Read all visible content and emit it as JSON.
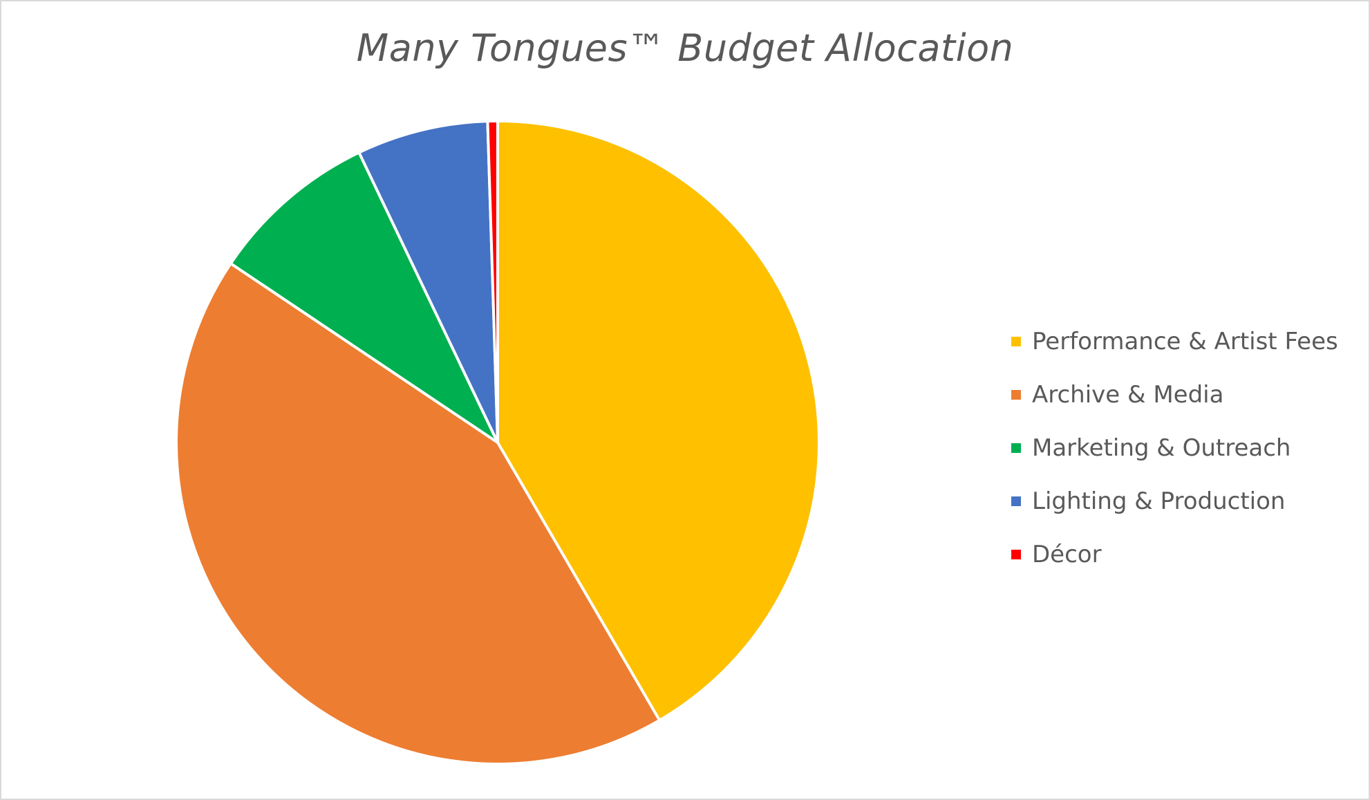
{
  "chart_data": {
    "type": "pie",
    "title": "Many Tongues™ Budget Allocation",
    "categories": [
      "Performance & Artist Fees",
      "Archive & Media",
      "Marketing & Outreach",
      "Lighting & Production",
      "Décor"
    ],
    "values": [
      41.6,
      42.8,
      8.5,
      6.6,
      0.5
    ],
    "colors": [
      "#FFC000",
      "#ED7D31",
      "#00B050",
      "#4472C4",
      "#FF0000"
    ],
    "start_angle_deg": 0,
    "direction": "clockwise",
    "legend_position": "right",
    "slice_border_color": "#FFFFFF"
  }
}
